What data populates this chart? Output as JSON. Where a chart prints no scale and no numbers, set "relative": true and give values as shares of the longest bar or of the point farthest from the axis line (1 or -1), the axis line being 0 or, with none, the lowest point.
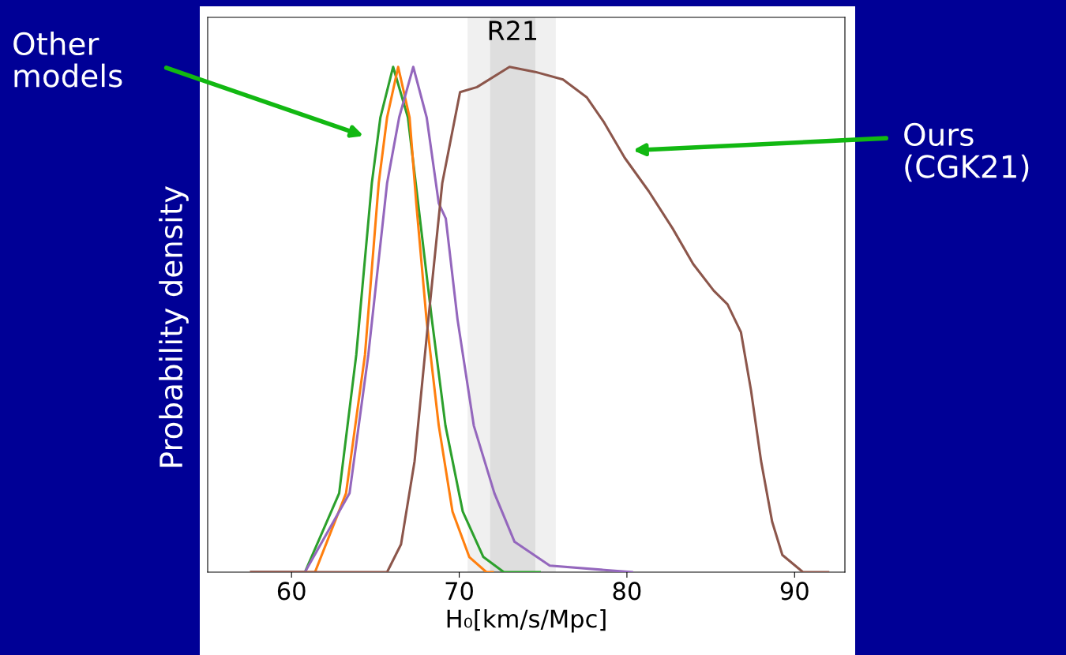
{
  "chart_data": {
    "type": "line",
    "relative": true,
    "xlabel": "H₀[km/s/Mpc]",
    "ylabel": "Probability density",
    "xlim": [
      55,
      93
    ],
    "xticks": [
      60,
      70,
      80,
      90
    ],
    "tick_labels": "x",
    "grid": false,
    "legend": false,
    "bands": [
      {
        "axis": "x",
        "from": 70.5,
        "to": 75.76,
        "color": "#f0f0f0"
      },
      {
        "axis": "x",
        "from": 71.84,
        "to": 74.54,
        "color": "#dedede",
        "label": "R21"
      }
    ],
    "series": [
      {
        "color": "#2ca02c",
        "x": [
          57.6,
          60.8,
          62.84,
          63.86,
          64.79,
          65.3,
          66.06,
          66.94,
          67.55,
          68.37,
          69.18,
          70.21,
          71.44,
          72.66,
          74.8
        ],
        "values": [
          0,
          0,
          0.156,
          0.43,
          0.77,
          0.9,
          1.0,
          0.9,
          0.73,
          0.5,
          0.29,
          0.12,
          0.03,
          0,
          0
        ]
      },
      {
        "color": "#ff7f0e",
        "x": [
          57.6,
          61.4,
          63.25,
          64.38,
          65.2,
          65.7,
          66.36,
          67.04,
          67.44,
          68.05,
          68.78,
          69.6,
          70.6,
          71.62,
          72.0
        ],
        "values": [
          0,
          0,
          0.156,
          0.43,
          0.77,
          0.9,
          1.0,
          0.9,
          0.73,
          0.5,
          0.29,
          0.12,
          0.03,
          0,
          0
        ]
      },
      {
        "color": "#9467bd",
        "x": [
          57.6,
          60.8,
          63.46,
          64.58,
          65.7,
          66.42,
          67.26,
          68.06,
          68.78,
          69.2,
          69.9,
          70.87,
          72.1,
          73.3,
          75.4,
          80.3
        ],
        "values": [
          0,
          0,
          0.156,
          0.43,
          0.77,
          0.9,
          1.0,
          0.9,
          0.73,
          0.7,
          0.5,
          0.29,
          0.156,
          0.06,
          0.013,
          0
        ]
      },
      {
        "color": "#8c564b",
        "x": [
          57.6,
          65.7,
          66.53,
          67.34,
          68.16,
          68.99,
          70.05,
          71.06,
          73.0,
          74.54,
          76.19,
          77.6,
          78.64,
          79.87,
          81.3,
          82.73,
          83.95,
          85.18,
          86.0,
          86.8,
          87.4,
          88.0,
          88.66,
          89.27,
          90.5,
          92.0
        ],
        "values": [
          0,
          0,
          0.055,
          0.22,
          0.5,
          0.77,
          0.95,
          0.96,
          1.0,
          0.99,
          0.975,
          0.94,
          0.89,
          0.82,
          0.754,
          0.68,
          0.61,
          0.557,
          0.53,
          0.475,
          0.36,
          0.22,
          0.1,
          0.034,
          0,
          0
        ]
      }
    ],
    "annotations": [
      "Other\nmodels",
      "Ours\n(CGK21)"
    ]
  }
}
